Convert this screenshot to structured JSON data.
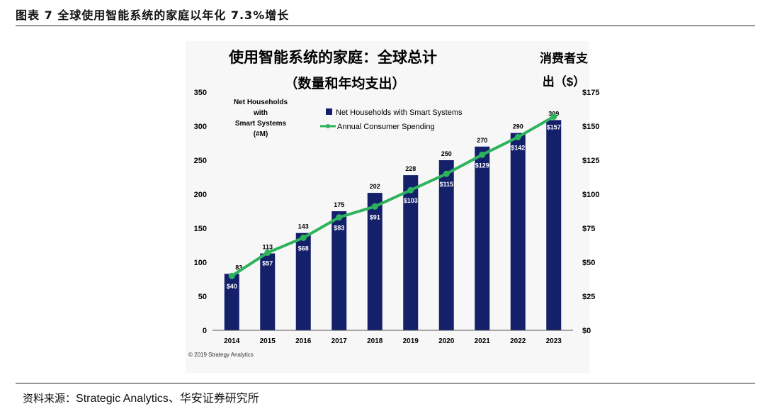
{
  "figure": {
    "title": "图表 7  全球使用智能系统的家庭以年化 7.3%增长",
    "source_label": "资料来源：",
    "source_text": "Strategic Analytics、华安证券研究所"
  },
  "chart_data": {
    "type": "bar+line",
    "title_line1": "使用智能系统的家庭：全球总计",
    "title_line2": "（数量和年均支出）",
    "right_axis_title_line1": "消费者支",
    "right_axis_title_line2": "出（$）",
    "left_axis_title": [
      "Net Households",
      "with",
      "Smart Systems",
      "(#M)"
    ],
    "copyright": "© 2019 Strategy Analytics",
    "categories": [
      "2014",
      "2015",
      "2016",
      "2017",
      "2018",
      "2019",
      "2020",
      "2021",
      "2022",
      "2023"
    ],
    "series": [
      {
        "name": "Net Households with Smart Systems",
        "axis": "left",
        "type": "bar",
        "color": "#15206b",
        "values": [
          83,
          113,
          143,
          175,
          202,
          228,
          250,
          270,
          290,
          309
        ],
        "labels": [
          "83",
          "113",
          "143",
          "175",
          "202",
          "228",
          "250",
          "270",
          "290",
          "309"
        ]
      },
      {
        "name": "Annual Consumer Spending",
        "axis": "right",
        "type": "line",
        "color": "#2db35c",
        "values": [
          40,
          57,
          68,
          83,
          91,
          103,
          115,
          129,
          142,
          157
        ],
        "labels": [
          "$40",
          "$57",
          "$68",
          "$83",
          "$91",
          "$103",
          "$115",
          "$129",
          "$142",
          "$157"
        ]
      }
    ],
    "y_left": {
      "min": 0,
      "max": 350,
      "ticks": [
        "0",
        "50",
        "100",
        "150",
        "200",
        "250",
        "300",
        "350"
      ]
    },
    "y_right": {
      "min": 0,
      "max": 175,
      "ticks": [
        "$0",
        "$25",
        "$50",
        "$75",
        "$100",
        "$125",
        "$150",
        "$175"
      ]
    },
    "legend": [
      "Net Households with Smart Systems",
      "Annual Consumer Spending"
    ],
    "grid": false
  }
}
